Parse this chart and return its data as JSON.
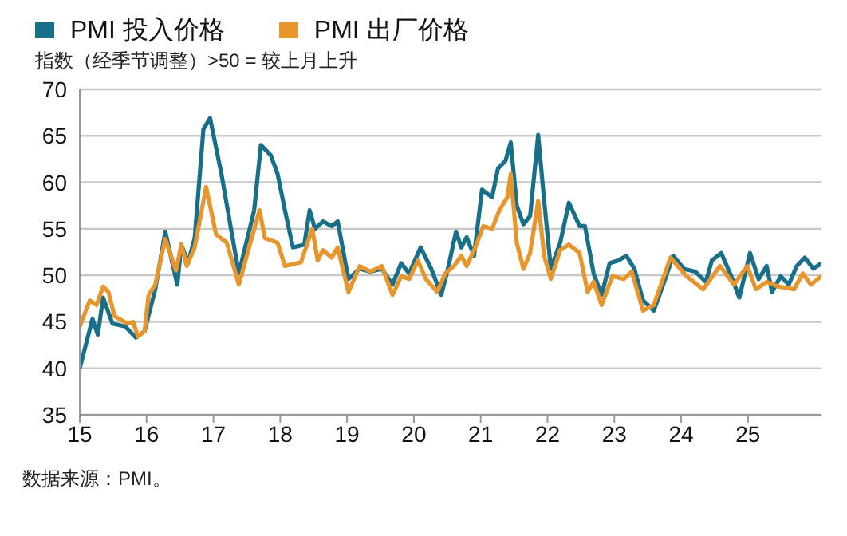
{
  "chart_data": {
    "type": "line",
    "subtitle": "指数（经季节调整）>50 = 较上月上升",
    "annotations": [
      "数据来源：PMI。"
    ],
    "legend": "top left",
    "grid": "y",
    "marker": "none",
    "line_style": "solid",
    "xlim": [
      15,
      26.1
    ],
    "xticks": [
      15,
      16,
      17,
      18,
      19,
      20,
      21,
      22,
      23,
      24,
      25
    ],
    "ylim": [
      35,
      70
    ],
    "yticks": [
      35,
      40,
      45,
      50,
      55,
      60,
      65,
      70
    ],
    "series": [
      {
        "name": "PMI 投入价格",
        "color": "#176f8a",
        "x": [
          15.0,
          15.19,
          15.27,
          15.35,
          15.49,
          15.68,
          15.84,
          15.97,
          16.13,
          16.28,
          16.46,
          16.52,
          16.62,
          16.72,
          16.85,
          16.95,
          17.12,
          17.38,
          17.61,
          17.71,
          17.86,
          17.96,
          18.07,
          18.19,
          18.36,
          18.44,
          18.52,
          18.64,
          18.77,
          18.86,
          19.02,
          19.19,
          19.35,
          19.52,
          19.68,
          19.81,
          19.93,
          20.1,
          20.26,
          20.41,
          20.51,
          20.63,
          20.71,
          20.79,
          20.9,
          21.02,
          21.17,
          21.26,
          21.37,
          21.45,
          21.54,
          21.64,
          21.74,
          21.86,
          21.95,
          22.05,
          22.19,
          22.32,
          22.48,
          22.56,
          22.69,
          22.81,
          22.93,
          23.06,
          23.18,
          23.3,
          23.43,
          23.59,
          23.76,
          23.88,
          24.04,
          24.21,
          24.37,
          24.46,
          24.6,
          24.75,
          24.87,
          25.03,
          25.16,
          25.28,
          25.36,
          25.49,
          25.61,
          25.73,
          25.85,
          25.98,
          26.1
        ],
        "values": [
          40,
          45.3,
          43.6,
          47.6,
          44.8,
          44.5,
          43.3,
          44,
          48.5,
          54.7,
          49,
          53.3,
          51.3,
          54,
          65.7,
          66.9,
          60.9,
          50.2,
          57,
          64,
          62.9,
          60.9,
          57,
          53,
          53.3,
          57,
          55,
          55.8,
          55.3,
          55.8,
          49.6,
          50.7,
          50.4,
          50.7,
          49,
          51.3,
          50.2,
          53,
          50.7,
          47.9,
          50.7,
          54.7,
          53,
          54.1,
          52.1,
          59.2,
          58.4,
          61.5,
          62.3,
          64.3,
          57.5,
          55.5,
          56.4,
          65.1,
          58,
          50.7,
          53.5,
          57.8,
          55.3,
          55.3,
          50.2,
          47.9,
          51.3,
          51.6,
          52.1,
          50.7,
          47.3,
          46.2,
          49.6,
          52.1,
          50.7,
          50.4,
          49.3,
          51.6,
          52.4,
          49.9,
          47.6,
          52.4,
          49.6,
          51,
          48.2,
          49.9,
          49,
          51,
          51.9,
          50.7,
          51.3
        ]
      },
      {
        "name": "PMI 出厂价格",
        "color": "#e8952c",
        "x": [
          15.0,
          15.15,
          15.25,
          15.35,
          15.43,
          15.52,
          15.72,
          15.8,
          15.87,
          15.97,
          16.03,
          16.13,
          16.28,
          16.44,
          16.52,
          16.6,
          16.72,
          16.89,
          17.04,
          17.2,
          17.38,
          17.69,
          17.77,
          17.96,
          18.07,
          18.31,
          18.48,
          18.56,
          18.64,
          18.77,
          18.86,
          19.02,
          19.19,
          19.35,
          19.52,
          19.68,
          19.81,
          19.93,
          20.06,
          20.18,
          20.35,
          20.47,
          20.6,
          20.71,
          20.79,
          20.92,
          21.04,
          21.17,
          21.28,
          21.4,
          21.45,
          21.54,
          21.64,
          21.74,
          21.86,
          21.95,
          22.05,
          22.19,
          22.32,
          22.48,
          22.6,
          22.69,
          22.81,
          22.97,
          23.14,
          23.26,
          23.43,
          23.59,
          23.84,
          24.08,
          24.33,
          24.58,
          24.79,
          24.99,
          25.12,
          25.28,
          25.45,
          25.69,
          25.82,
          25.94,
          26.1
        ],
        "values": [
          44.5,
          47.3,
          46.8,
          48.8,
          48.2,
          45.6,
          44.8,
          45,
          43.4,
          44,
          47.9,
          49,
          53.9,
          50.5,
          53.3,
          51,
          53,
          59.5,
          54.4,
          53.5,
          49,
          57,
          54,
          53.5,
          51,
          51.4,
          55,
          51.6,
          52.7,
          51.9,
          53,
          48.2,
          51,
          50.4,
          51,
          47.9,
          49.9,
          49.6,
          51.6,
          49.6,
          48.2,
          50.2,
          51,
          52.1,
          51,
          53,
          55.3,
          55,
          57,
          58.4,
          60.9,
          53.5,
          50.7,
          52.4,
          58,
          52.1,
          49.6,
          52.7,
          53.3,
          52.4,
          48.2,
          49.3,
          46.8,
          49.9,
          49.6,
          50.4,
          46.2,
          46.8,
          51.9,
          49.9,
          48.5,
          51,
          49,
          51,
          48.5,
          49.3,
          48.8,
          48.5,
          50.2,
          49,
          49.9
        ]
      }
    ]
  }
}
